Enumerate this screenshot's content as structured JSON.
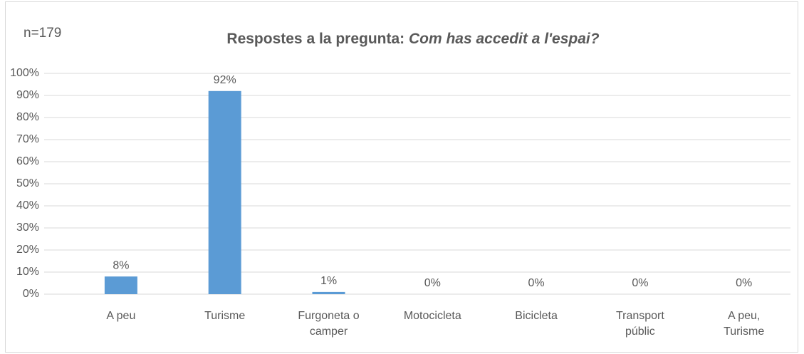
{
  "chart_data": {
    "type": "bar",
    "title": "Respostes a la pregunta: ",
    "title_italic": "Com has accedit a l'espai?",
    "annotation": "n=179",
    "categories": [
      "A peu",
      "Turisme",
      "Furgoneta o camper",
      "Motocicleta",
      "Bicicleta",
      "Transport públic",
      "A peu, Turisme"
    ],
    "values": [
      8,
      92,
      1,
      0,
      0,
      0,
      0
    ],
    "value_labels": [
      "8%",
      "92%",
      "1%",
      "0%",
      "0%",
      "0%",
      "0%"
    ],
    "color": "#5b9bd5",
    "ylim": [
      0,
      100
    ],
    "yticks": [
      {
        "value": 0,
        "label": "0%"
      },
      {
        "value": 10,
        "label": "10%"
      },
      {
        "value": 20,
        "label": "20%"
      },
      {
        "value": 30,
        "label": "30%"
      },
      {
        "value": 40,
        "label": "40%"
      },
      {
        "value": 50,
        "label": "50%"
      },
      {
        "value": 60,
        "label": "60%"
      },
      {
        "value": 70,
        "label": "70%"
      },
      {
        "value": 80,
        "label": "80%"
      },
      {
        "value": 90,
        "label": "90%"
      },
      {
        "value": 100,
        "label": "100%"
      }
    ],
    "grid": true
  }
}
